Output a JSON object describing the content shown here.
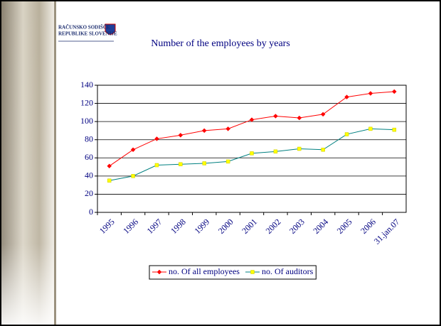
{
  "logo": {
    "line1": "RAČUNSKO SODIŠČE",
    "line2": "REPUBLIKE SLOVENIJE"
  },
  "chart_data": {
    "type": "line",
    "title": "Number of the employees by years",
    "categories": [
      "1995",
      "1996",
      "1997",
      "1998",
      "1999",
      "2000",
      "2001",
      "2002",
      "2003",
      "2004",
      "2005",
      "2006",
      "31.jan.07"
    ],
    "series": [
      {
        "name": "no. Of all employees",
        "color": "#ff0000",
        "marker_color": "#ff0000",
        "marker": "diamond",
        "values": [
          51,
          69,
          81,
          85,
          90,
          92,
          102,
          106,
          104,
          108,
          127,
          131,
          133
        ]
      },
      {
        "name": "no. Of auditors",
        "color": "#008080",
        "marker_color": "#ffff00",
        "marker": "square",
        "values": [
          35,
          40,
          52,
          53,
          54,
          56,
          65,
          67,
          70,
          69,
          86,
          92,
          91
        ]
      }
    ],
    "ylim": [
      0,
      140
    ],
    "yticks": [
      0,
      20,
      40,
      60,
      80,
      100,
      120,
      140
    ],
    "grid": true,
    "legend": "bottom"
  }
}
